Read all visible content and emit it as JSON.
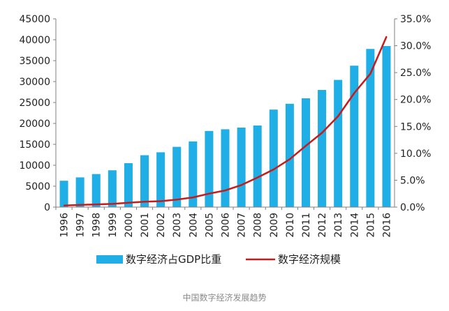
{
  "caption": "中国数字经济发展趋势",
  "chart_data": {
    "type": "bar+line",
    "categories": [
      "1996",
      "1997",
      "1998",
      "1999",
      "2000",
      "2001",
      "2002",
      "2003",
      "2004",
      "2005",
      "2006",
      "2007",
      "2008",
      "2009",
      "2010",
      "2011",
      "2012",
      "2013",
      "2014",
      "2015",
      "2016"
    ],
    "series": [
      {
        "name": "数字经济占GDP比重",
        "kind": "bar",
        "axis": "left",
        "color": "#1faee6",
        "values": [
          6300,
          7100,
          7900,
          8800,
          10500,
          12400,
          13100,
          14400,
          15700,
          18200,
          18600,
          19000,
          19500,
          23300,
          24700,
          26000,
          28000,
          30400,
          33800,
          37800,
          38500
        ]
      },
      {
        "name": "数字经济规模",
        "kind": "line",
        "axis": "right",
        "color": "#c91a1a",
        "values": [
          0.3,
          0.4,
          0.5,
          0.6,
          0.8,
          1.0,
          1.1,
          1.4,
          1.8,
          2.5,
          3.1,
          4.1,
          5.5,
          7.0,
          8.9,
          11.4,
          13.8,
          16.9,
          21.2,
          24.8,
          31.7
        ]
      }
    ],
    "left_axis": {
      "min": 0,
      "max": 45000,
      "step": 5000,
      "ticks": [
        "0",
        "5000",
        "10000",
        "15000",
        "20000",
        "25000",
        "30000",
        "35000",
        "40000",
        "45000"
      ]
    },
    "right_axis": {
      "min": 0,
      "max": 35,
      "step": 5,
      "ticks": [
        "0.0%",
        "5.0%",
        "10.0%",
        "15.0%",
        "20.0%",
        "25.0%",
        "30.0%",
        "35.0%"
      ]
    },
    "grid": false,
    "legend_position": "bottom"
  }
}
